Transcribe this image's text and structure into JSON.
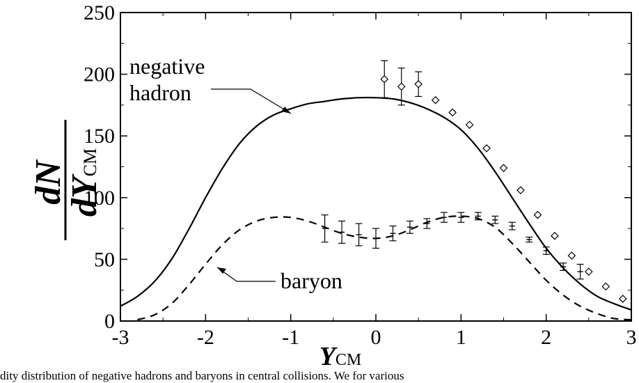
{
  "caption": "dity distribution of negative hadrons and baryons in central collisions. We for various",
  "chart_data": {
    "type": "line",
    "title": "",
    "xlabel": "Y",
    "xlabel_sub": "CM",
    "ylabel_num": "dN",
    "ylabel_den": "dY",
    "ylabel_den_sub": "CM",
    "xlim": [
      -3,
      3
    ],
    "ylim": [
      0,
      250
    ],
    "xticks": [
      -3,
      -2,
      -1,
      0,
      1,
      2,
      3
    ],
    "yticks": [
      0,
      50,
      100,
      150,
      200,
      250
    ],
    "grid": false,
    "annotations": [
      {
        "text": "negative",
        "series": "negative"
      },
      {
        "text": "hadron",
        "series": "negative"
      },
      {
        "text": "baryon",
        "series": "baryon"
      }
    ],
    "series": [
      {
        "style": "solid",
        "x": [
          -3.0,
          -2.8,
          -2.6,
          -2.4,
          -2.2,
          -2.0,
          -1.8,
          -1.6,
          -1.4,
          -1.2,
          -1.0,
          -0.8,
          -0.6,
          -0.4,
          -0.2,
          0.0,
          0.2,
          0.4,
          0.6,
          0.8,
          1.0,
          1.2,
          1.4,
          1.6,
          1.8,
          2.0,
          2.2,
          2.4,
          2.6,
          2.8,
          3.0
        ],
        "y": [
          12,
          20,
          32,
          50,
          74,
          100,
          124,
          144,
          158,
          167,
          172,
          176,
          178,
          180,
          181,
          181,
          180,
          177,
          172,
          165,
          155,
          140,
          121,
          100,
          79,
          59,
          43,
          30,
          20,
          14,
          9
        ]
      },
      {
        "style": "dashed",
        "x": [
          -2.8,
          -2.6,
          -2.4,
          -2.2,
          -2.0,
          -1.8,
          -1.6,
          -1.4,
          -1.2,
          -1.0,
          -0.8,
          -0.6,
          -0.4,
          -0.2,
          0.0,
          0.2,
          0.4,
          0.6,
          0.8,
          1.0,
          1.2,
          1.4,
          1.6,
          1.8,
          2.0,
          2.2,
          2.4,
          2.6,
          2.8,
          3.0
        ],
        "y": [
          1,
          5,
          14,
          29,
          46,
          62,
          74,
          81,
          84,
          84,
          81,
          76,
          71,
          68,
          67,
          69,
          74,
          80,
          84,
          85,
          83,
          76,
          63,
          48,
          33,
          21,
          12,
          6,
          2,
          1
        ]
      }
    ],
    "points_hadron": [
      {
        "x": 0.1,
        "y": 196,
        "err": 15
      },
      {
        "x": 0.3,
        "y": 190,
        "err": 15
      },
      {
        "x": 0.5,
        "y": 192,
        "err": 10
      },
      {
        "x": 0.7,
        "y": 179,
        "err": 0
      },
      {
        "x": 0.9,
        "y": 169,
        "err": 0
      },
      {
        "x": 1.1,
        "y": 159,
        "err": 0
      },
      {
        "x": 1.3,
        "y": 140,
        "err": 0
      },
      {
        "x": 1.5,
        "y": 124,
        "err": 0
      },
      {
        "x": 1.7,
        "y": 106,
        "err": 0
      },
      {
        "x": 1.9,
        "y": 86,
        "err": 0
      },
      {
        "x": 2.1,
        "y": 69,
        "err": 0
      },
      {
        "x": 2.3,
        "y": 53,
        "err": 0
      },
      {
        "x": 2.5,
        "y": 40,
        "err": 0
      },
      {
        "x": 2.7,
        "y": 28,
        "err": 0
      },
      {
        "x": 2.9,
        "y": 18,
        "err": 0
      }
    ],
    "points_baryon": [
      {
        "x": -0.6,
        "y": 75,
        "err": 11
      },
      {
        "x": -0.4,
        "y": 72,
        "err": 9
      },
      {
        "x": -0.2,
        "y": 70,
        "err": 9
      },
      {
        "x": 0.0,
        "y": 67,
        "err": 8
      },
      {
        "x": 0.2,
        "y": 71,
        "err": 6
      },
      {
        "x": 0.4,
        "y": 76,
        "err": 5
      },
      {
        "x": 0.6,
        "y": 79,
        "err": 4
      },
      {
        "x": 0.8,
        "y": 84,
        "err": 4
      },
      {
        "x": 1.0,
        "y": 84,
        "err": 4
      },
      {
        "x": 1.2,
        "y": 85,
        "err": 3
      },
      {
        "x": 1.4,
        "y": 82,
        "err": 3
      },
      {
        "x": 1.6,
        "y": 77,
        "err": 3
      },
      {
        "x": 1.8,
        "y": 66,
        "err": 2
      },
      {
        "x": 2.0,
        "y": 57,
        "err": 3
      },
      {
        "x": 2.2,
        "y": 44,
        "err": 3
      },
      {
        "x": 2.4,
        "y": 40,
        "err": 6
      }
    ]
  }
}
